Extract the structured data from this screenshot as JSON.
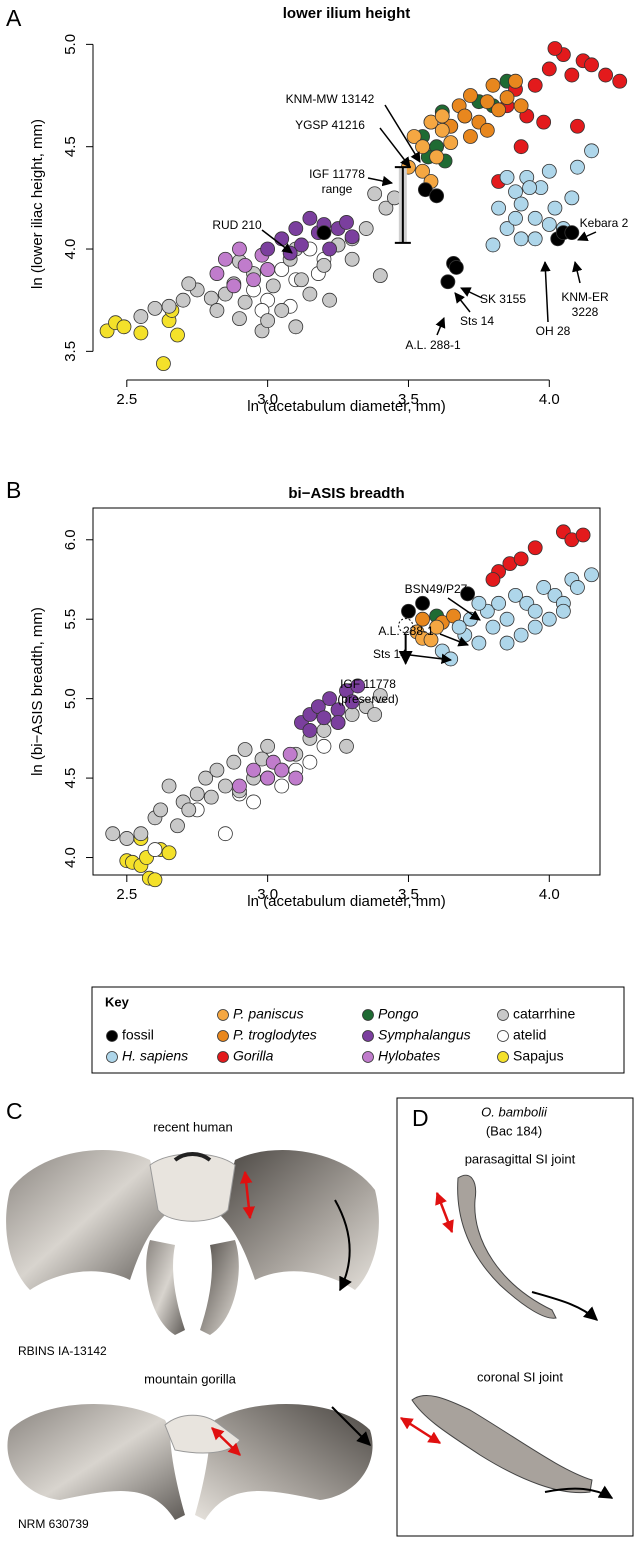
{
  "chart_data": [
    {
      "type": "scatter",
      "panel_label": "A",
      "title": "lower ilium height",
      "xlabel": "ln (acetabulum diameter, mm)",
      "ylabel": "ln (lower iliac height, mm)",
      "xlim": [
        2.38,
        4.18
      ],
      "ylim": [
        3.36,
        5.08
      ],
      "xticks": [
        2.5,
        {
          "value": 3,
          "label": "3.0"
        },
        3.5,
        {
          "value": 4,
          "label": "4.0"
        }
      ],
      "yticks": [
        3.5,
        {
          "value": 4,
          "label": "4.0"
        },
        4.5,
        {
          "value": 5,
          "label": "5.0"
        }
      ],
      "frame": "axes",
      "series": [
        {
          "name": "fossil",
          "color": "#000000",
          "x": [
            3.2,
            3.56,
            3.6,
            3.66,
            3.67,
            3.64,
            4.03,
            4.05,
            4.08
          ],
          "y": [
            4.08,
            4.29,
            4.26,
            3.93,
            3.91,
            3.84,
            4.05,
            4.08,
            4.08
          ]
        },
        {
          "name": "H. sapiens",
          "color": "#aed6ea",
          "x": [
            3.8,
            3.82,
            3.85,
            3.88,
            3.9,
            3.92,
            3.95,
            3.97,
            4.0,
            4.02,
            4.05,
            4.08,
            4.1,
            4.15,
            3.85,
            3.9,
            3.95,
            4.0,
            3.88,
            3.93
          ],
          "y": [
            4.02,
            4.2,
            4.1,
            4.28,
            4.05,
            4.35,
            4.15,
            4.3,
            4.38,
            4.2,
            4.1,
            4.25,
            4.4,
            4.48,
            4.35,
            4.22,
            4.05,
            4.12,
            4.15,
            4.3
          ]
        },
        {
          "name": "P. paniscus",
          "color": "#f5a742",
          "x": [
            3.5,
            3.52,
            3.55,
            3.58,
            3.6,
            3.62,
            3.65,
            3.55,
            3.58,
            3.62
          ],
          "y": [
            4.4,
            4.55,
            4.5,
            4.62,
            4.45,
            4.58,
            4.52,
            4.38,
            4.33,
            4.65
          ]
        },
        {
          "name": "P. troglodytes",
          "color": "#e8871e",
          "x": [
            3.65,
            3.68,
            3.7,
            3.72,
            3.75,
            3.78,
            3.8,
            3.82,
            3.85,
            3.88,
            3.9,
            3.72,
            3.78
          ],
          "y": [
            4.6,
            4.7,
            4.65,
            4.75,
            4.62,
            4.72,
            4.8,
            4.68,
            4.74,
            4.82,
            4.7,
            4.55,
            4.58
          ]
        },
        {
          "name": "Gorilla",
          "color": "#e31a1c",
          "x": [
            3.85,
            3.88,
            3.92,
            3.95,
            3.98,
            4.0,
            4.05,
            4.08,
            4.1,
            4.12,
            4.15,
            4.2,
            4.25,
            3.9,
            4.02,
            3.82
          ],
          "y": [
            4.7,
            4.78,
            4.65,
            4.8,
            4.62,
            4.88,
            4.95,
            4.85,
            4.6,
            4.92,
            4.9,
            4.85,
            4.82,
            4.5,
            4.98,
            4.33
          ]
        },
        {
          "name": "Pongo",
          "color": "#1f6b33",
          "x": [
            3.55,
            3.58,
            3.6,
            3.62,
            3.65,
            3.7,
            3.75,
            3.8,
            3.85,
            3.57,
            3.63
          ],
          "y": [
            4.55,
            4.62,
            4.5,
            4.67,
            4.6,
            4.65,
            4.72,
            4.7,
            4.82,
            4.45,
            4.43
          ]
        },
        {
          "name": "Symphalangus",
          "color": "#7b3f9e",
          "x": [
            3.0,
            3.05,
            3.08,
            3.1,
            3.12,
            3.15,
            3.18,
            3.2,
            3.22,
            3.25,
            3.28,
            3.3
          ],
          "y": [
            4.0,
            4.05,
            3.98,
            4.1,
            4.02,
            4.15,
            4.08,
            4.12,
            4.0,
            4.1,
            4.13,
            4.06
          ]
        },
        {
          "name": "Hylobates",
          "color": "#c07ccc",
          "x": [
            2.82,
            2.85,
            2.88,
            2.9,
            2.92,
            2.95,
            2.98,
            3.0
          ],
          "y": [
            3.88,
            3.95,
            3.82,
            4.0,
            3.92,
            3.85,
            3.97,
            3.9
          ]
        },
        {
          "name": "catarrhine",
          "color": "#c8c8c8",
          "x": [
            2.55,
            2.6,
            2.65,
            2.7,
            2.75,
            2.8,
            2.82,
            2.85,
            2.88,
            2.9,
            2.92,
            2.95,
            2.98,
            3.0,
            3.02,
            3.05,
            3.08,
            3.1,
            3.12,
            3.15,
            3.2,
            3.25,
            3.3,
            3.35,
            3.4,
            3.42,
            3.45,
            3.38,
            3.3,
            3.22,
            2.72,
            2.9,
            3.0,
            3.1
          ],
          "y": [
            3.67,
            3.71,
            3.72,
            3.75,
            3.8,
            3.76,
            3.7,
            3.78,
            3.83,
            3.66,
            3.74,
            3.88,
            3.6,
            3.9,
            3.82,
            3.7,
            3.95,
            3.62,
            3.85,
            3.78,
            3.92,
            4.02,
            4.05,
            4.1,
            3.87,
            4.2,
            4.25,
            4.27,
            3.95,
            3.75,
            3.83,
            3.94,
            3.65,
            4.0
          ]
        },
        {
          "name": "atelid",
          "color": "#ffffff",
          "x": [
            2.95,
            3.0,
            3.05,
            3.1,
            3.15,
            3.2,
            3.25,
            2.98,
            3.08,
            3.18
          ],
          "y": [
            3.8,
            3.75,
            3.9,
            3.85,
            4.0,
            3.95,
            4.02,
            3.7,
            3.72,
            3.88
          ]
        },
        {
          "name": "Sapajus",
          "color": "#f4e12a",
          "x": [
            2.43,
            2.46,
            2.49,
            2.55,
            2.63,
            2.65,
            2.66,
            2.68
          ],
          "y": [
            3.6,
            3.64,
            3.62,
            3.59,
            3.44,
            3.65,
            3.7,
            3.58
          ]
        }
      ],
      "range_bar": {
        "x": 3.48,
        "ymin": 4.03,
        "ymax": 4.4
      },
      "annotations": [
        [
          "KNM-MW 13142"
        ],
        [
          "YGSP 41216"
        ],
        [
          "IGF 11778",
          "range"
        ],
        [
          "RUD 210"
        ],
        [
          "Kebara 2"
        ],
        [
          "KNM-ER",
          "3228"
        ],
        [
          "OH 28"
        ],
        [
          "SK 3155"
        ],
        [
          "Sts 14"
        ],
        [
          "A.L. 288-1"
        ]
      ]
    },
    {
      "type": "scatter",
      "panel_label": "B",
      "title": "bi−ASIS breadth",
      "xlabel": "ln (acetabulum diameter, mm)",
      "ylabel": "ln (bi−ASIS breadth, mm)",
      "xlim": [
        2.38,
        4.18
      ],
      "ylim": [
        3.89,
        6.2
      ],
      "xticks": [
        2.5,
        {
          "value": 3,
          "label": "3.0"
        },
        3.5,
        {
          "value": 4,
          "label": "4.0"
        }
      ],
      "yticks": [
        {
          "value": 4,
          "label": "4.0"
        },
        4.5,
        {
          "value": 5,
          "label": "5.0"
        },
        5.5,
        {
          "value": 6,
          "label": "6.0"
        }
      ],
      "frame": "box",
      "series": [
        {
          "name": "fossil",
          "color": "#000000",
          "x": [
            3.5,
            3.55,
            3.71
          ],
          "y": [
            5.55,
            5.6,
            5.66
          ]
        },
        {
          "name": "H. sapiens",
          "color": "#aed6ea",
          "x": [
            3.62,
            3.65,
            3.7,
            3.72,
            3.75,
            3.78,
            3.8,
            3.82,
            3.85,
            3.88,
            3.9,
            3.92,
            3.95,
            3.98,
            4.0,
            4.02,
            4.05,
            4.08,
            4.1,
            4.15,
            3.68,
            3.75,
            3.85,
            3.95,
            4.05
          ],
          "y": [
            5.3,
            5.25,
            5.4,
            5.5,
            5.35,
            5.55,
            5.45,
            5.6,
            5.5,
            5.65,
            5.4,
            5.6,
            5.55,
            5.7,
            5.5,
            5.65,
            5.6,
            5.75,
            5.7,
            5.78,
            5.45,
            5.6,
            5.35,
            5.45,
            5.55
          ]
        },
        {
          "name": "P. paniscus",
          "color": "#f5a742",
          "x": [
            3.53,
            3.55,
            3.58,
            3.6
          ],
          "y": [
            5.42,
            5.38,
            5.37,
            5.45
          ]
        },
        {
          "name": "P. troglodytes",
          "color": "#e8871e",
          "x": [
            3.55,
            3.62,
            3.66
          ],
          "y": [
            5.5,
            5.48,
            5.52
          ]
        },
        {
          "name": "Gorilla",
          "color": "#e31a1c",
          "x": [
            3.82,
            3.86,
            3.9,
            3.95,
            4.05,
            4.08,
            4.12,
            3.8
          ],
          "y": [
            5.8,
            5.85,
            5.88,
            5.95,
            6.05,
            6.0,
            6.03,
            5.75
          ]
        },
        {
          "name": "Pongo",
          "color": "#1f6b33",
          "x": [
            3.6
          ],
          "y": [
            5.52
          ]
        },
        {
          "name": "Symphalangus",
          "color": "#7b3f9e",
          "x": [
            3.12,
            3.15,
            3.18,
            3.2,
            3.22,
            3.25,
            3.28,
            3.3,
            3.32,
            3.15,
            3.25
          ],
          "y": [
            4.85,
            4.9,
            4.95,
            4.88,
            5.0,
            4.93,
            5.05,
            4.98,
            5.08,
            4.8,
            4.85
          ]
        },
        {
          "name": "Hylobates",
          "color": "#c07ccc",
          "x": [
            2.9,
            2.95,
            3.0,
            3.02,
            3.05,
            3.08,
            3.1
          ],
          "y": [
            4.45,
            4.55,
            4.5,
            4.6,
            4.55,
            4.65,
            4.5
          ]
        },
        {
          "name": "catarrhine",
          "color": "#c8c8c8",
          "x": [
            2.45,
            2.5,
            2.55,
            2.6,
            2.65,
            2.7,
            2.72,
            2.75,
            2.78,
            2.8,
            2.82,
            2.85,
            2.88,
            2.9,
            2.92,
            2.95,
            2.98,
            3.0,
            3.05,
            3.1,
            3.15,
            3.2,
            3.25,
            3.3,
            3.35,
            3.4,
            3.38,
            3.28,
            2.68,
            2.62
          ],
          "y": [
            4.15,
            4.12,
            4.15,
            4.25,
            4.45,
            4.35,
            4.3,
            4.4,
            4.5,
            4.38,
            4.55,
            4.45,
            4.6,
            4.42,
            4.68,
            4.5,
            4.62,
            4.7,
            4.55,
            4.65,
            4.75,
            4.8,
            4.85,
            4.9,
            4.95,
            5.02,
            4.9,
            4.7,
            4.2,
            4.3
          ]
        },
        {
          "name": "atelid",
          "color": "#ffffff",
          "x": [
            2.6,
            2.75,
            2.85,
            2.9,
            2.95,
            3.0,
            3.05,
            3.1,
            3.15,
            3.2
          ],
          "y": [
            4.05,
            4.3,
            4.15,
            4.4,
            4.35,
            4.5,
            4.45,
            4.55,
            4.6,
            4.7
          ]
        },
        {
          "name": "Sapajus",
          "color": "#f4e12a",
          "x": [
            2.5,
            2.52,
            2.55,
            2.58,
            2.6,
            2.62,
            2.65,
            2.55,
            2.57
          ],
          "y": [
            3.98,
            3.97,
            3.95,
            3.87,
            3.86,
            4.05,
            4.03,
            4.12,
            4.0
          ]
        }
      ],
      "preserved_point": {
        "x": 3.49,
        "y": 5.46
      },
      "annotations": [
        [
          "BSN49/P27"
        ],
        [
          "A.L. 288-1"
        ],
        [
          "Sts 14"
        ],
        [
          "IGF 11778",
          "(preserved)"
        ]
      ]
    }
  ],
  "legend_title": "Key",
  "panel_c": {
    "label": "C",
    "top_label": "recent human",
    "top_specimen": "RBINS IA-13142",
    "bottom_label": "mountain gorilla",
    "bottom_specimen": "NRM 630739"
  },
  "panel_d": {
    "label": "D",
    "species": "O. bambolii",
    "specimen": "(Bac 184)",
    "top_label": "parasagittal SI joint",
    "bottom_label": "coronal SI joint"
  }
}
